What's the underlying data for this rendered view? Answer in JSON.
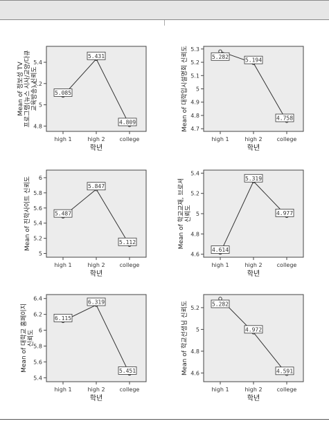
{
  "chart_data": [
    {
      "type": "line",
      "categories": [
        "high 1",
        "high 2",
        "college"
      ],
      "values": [
        5.085,
        5.431,
        4.809
      ],
      "data_labels": [
        "5.085",
        "5.431",
        "4.809"
      ],
      "xlabel": "학년",
      "ylabel": "Mean of 정보성 TV 프로그램(뉴스 시사/교양/다큐 교육방송) 신뢰도",
      "ylim": [
        4.75,
        5.55
      ],
      "yticks": [
        4.8,
        5.0,
        5.2,
        5.4
      ],
      "ytick_labels": [
        "4.8",
        "5",
        "5.2",
        "5.4"
      ],
      "grid": false
    },
    {
      "type": "line",
      "categories": [
        "high 1",
        "high 2",
        "college"
      ],
      "values": [
        5.282,
        5.194,
        4.758
      ],
      "data_labels": [
        "5.282",
        "5.194",
        "4.758"
      ],
      "xlabel": "학년",
      "ylabel": "Mean of 대학입시설명회 신뢰도",
      "ylim": [
        4.68,
        5.32
      ],
      "yticks": [
        4.7,
        4.8,
        4.9,
        5.0,
        5.1,
        5.2,
        5.3
      ],
      "ytick_labels": [
        "4.7",
        "4.8",
        "4.9",
        "5",
        "5.1",
        "5.2",
        "5.3"
      ],
      "grid": false
    },
    {
      "type": "line",
      "categories": [
        "high 1",
        "high 2",
        "college"
      ],
      "values": [
        5.487,
        5.847,
        5.112
      ],
      "data_labels": [
        "5.487",
        "5.847",
        "5.112"
      ],
      "xlabel": "학년",
      "ylabel": "Mean of 진학사이트 신뢰도",
      "ylim": [
        4.95,
        6.1
      ],
      "yticks": [
        5.0,
        5.2,
        5.4,
        5.6,
        5.8,
        6.0
      ],
      "ytick_labels": [
        "5",
        "5.2",
        "5.4",
        "5.6",
        "5.8",
        "6"
      ],
      "grid": false
    },
    {
      "type": "line",
      "categories": [
        "high 1",
        "high 2",
        "college"
      ],
      "values": [
        4.614,
        5.319,
        4.977
      ],
      "data_labels": [
        "4.614",
        "5.319",
        "4.977"
      ],
      "xlabel": "학년",
      "ylabel": "Mean of 학교교재, 브로셔 신뢰도",
      "ylim": [
        4.57,
        5.43
      ],
      "yticks": [
        4.6,
        4.8,
        5.0,
        5.2,
        5.4
      ],
      "ytick_labels": [
        "4.6",
        "4.8",
        "5",
        "5.2",
        "5.4"
      ],
      "grid": false
    },
    {
      "type": "line",
      "categories": [
        "high 1",
        "high 2",
        "college"
      ],
      "values": [
        6.115,
        6.319,
        5.451
      ],
      "data_labels": [
        "6.115",
        "6.319",
        "5.451"
      ],
      "xlabel": "학년",
      "ylabel": "Mean of 대학교 홈페이지 신뢰도",
      "ylim": [
        5.35,
        6.45
      ],
      "yticks": [
        5.4,
        5.6,
        5.8,
        6.0,
        6.2,
        6.4
      ],
      "ytick_labels": [
        "5.4",
        "5.6",
        "5.8",
        "6",
        "6.2",
        "6.4"
      ],
      "grid": false
    },
    {
      "type": "line",
      "categories": [
        "high 1",
        "high 2",
        "college"
      ],
      "values": [
        5.282,
        4.972,
        4.591
      ],
      "data_labels": [
        "5.282",
        "4.972",
        "4.591"
      ],
      "xlabel": "학년",
      "ylabel": "Mean of 학교선생님 신뢰도",
      "ylim": [
        4.52,
        5.32
      ],
      "yticks": [
        4.6,
        4.8,
        5.0,
        5.2
      ],
      "ytick_labels": [
        "4.6",
        "4.8",
        "5",
        "5.2"
      ],
      "grid": false
    }
  ],
  "colors": {
    "plot_background": "#ececec",
    "page_background": "#ffffff",
    "header_band": "#e6e6e6",
    "line": "#333333"
  }
}
